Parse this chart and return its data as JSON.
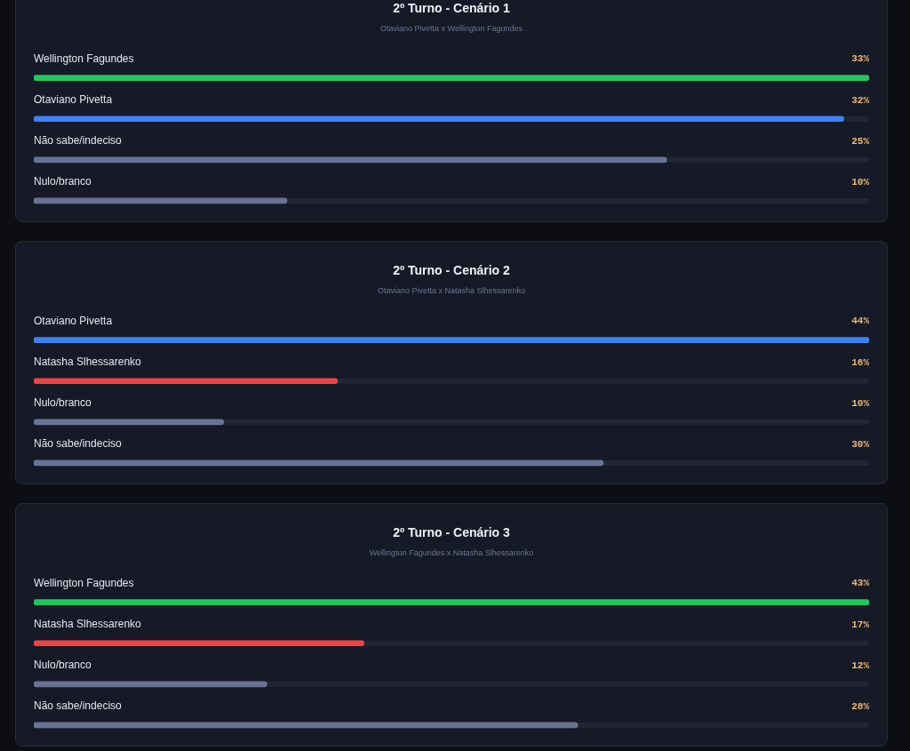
{
  "chart_data": [
    {
      "type": "bar",
      "orientation": "horizontal",
      "title": "2º Turno - Cenário 1",
      "subtitle": "Otaviano Pivetta x Wellington Fagundes",
      "categories": [
        "Wellington Fagundes",
        "Otaviano Pivetta",
        "Não sabe/indeciso",
        "Nulo/branco"
      ],
      "values": [
        33,
        32,
        25,
        10
      ],
      "colors": [
        "#22c55e",
        "#3b82f6",
        "#6b7394",
        "#6b7394"
      ],
      "value_labels": [
        "33%",
        "32%",
        "25%",
        "10%"
      ],
      "xlim": [
        0,
        33
      ],
      "tick_labels": "y"
    },
    {
      "type": "bar",
      "orientation": "horizontal",
      "title": "2º Turno - Cenário 2",
      "subtitle": "Otaviano Pivetta x Natasha Slhessarenko",
      "categories": [
        "Otaviano Pivetta",
        "Natasha Slhessarenko",
        "Nulo/branco",
        "Não sabe/indeciso"
      ],
      "values": [
        44,
        16,
        10,
        30
      ],
      "colors": [
        "#3b82f6",
        "#ef4444",
        "#6b7394",
        "#6b7394"
      ],
      "value_labels": [
        "44%",
        "16%",
        "10%",
        "30%"
      ],
      "xlim": [
        0,
        44
      ],
      "tick_labels": "y"
    },
    {
      "type": "bar",
      "orientation": "horizontal",
      "title": "2º Turno - Cenário 3",
      "subtitle": "Wellington Fagundes x Natasha Slhessarenko",
      "categories": [
        "Wellington Fagundes",
        "Natasha Slhessarenko",
        "Nulo/branco",
        "Não sabe/indeciso"
      ],
      "values": [
        43,
        17,
        12,
        28
      ],
      "colors": [
        "#22c55e",
        "#ef4444",
        "#6b7394",
        "#6b7394"
      ],
      "value_labels": [
        "43%",
        "17%",
        "12%",
        "28%"
      ],
      "xlim": [
        0,
        43
      ],
      "tick_labels": "y"
    }
  ]
}
